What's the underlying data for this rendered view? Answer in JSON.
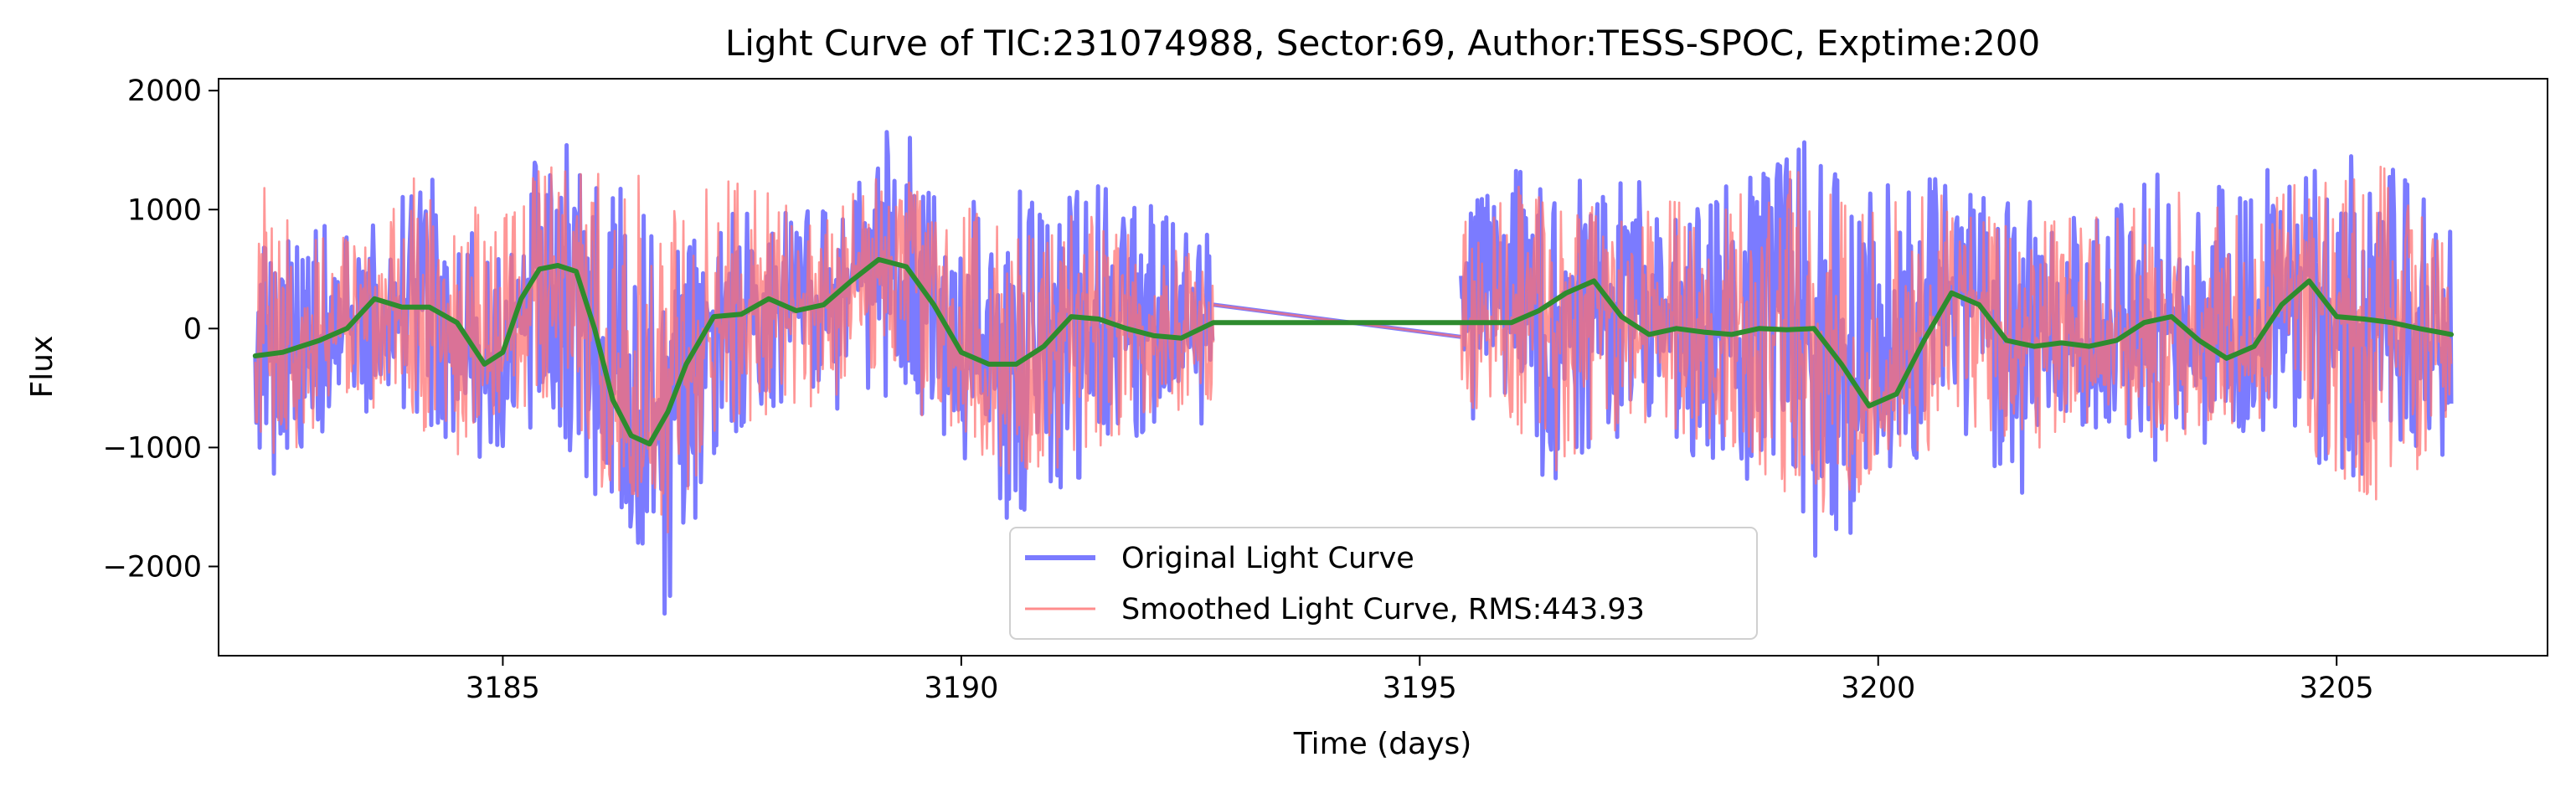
{
  "chart_data": {
    "type": "line",
    "title": "Light Curve of TIC:231074988, Sector:69, Author:TESS-SPOC, Exptime:200",
    "xlabel": "Time (days)",
    "ylabel": "Flux",
    "xlim": [
      3181.9,
      3207.3
    ],
    "ylim": [
      -2750,
      2100
    ],
    "xticks": [
      3185,
      3190,
      3195,
      3200,
      3205
    ],
    "yticks": [
      -2000,
      -1000,
      0,
      1000,
      2000
    ],
    "xtick_labels": [
      "3185",
      "3190",
      "3195",
      "3200",
      "3205"
    ],
    "ytick_labels": [
      "−2000",
      "−1000",
      "0",
      "1000",
      "2000"
    ],
    "grid": false,
    "legend_position": "bottom-center",
    "rms_text": "RMS:443.93",
    "segments": [
      [
        3182.3,
        3192.75
      ],
      [
        3195.45,
        3206.25
      ]
    ],
    "series": [
      {
        "name": "Original Light Curve",
        "color": "#7b7bff",
        "style": "noisy-line",
        "envelope": {
          "t": [
            3182.3,
            3183.0,
            3183.5,
            3184.0,
            3184.5,
            3185.0,
            3185.5,
            3186.0,
            3186.5,
            3186.8,
            3187.0,
            3187.5,
            3188.0,
            3188.5,
            3189.0,
            3189.3,
            3189.5,
            3190.0,
            3190.5,
            3191.0,
            3191.5,
            3192.0,
            3192.75,
            3195.45,
            3196.0,
            3196.5,
            3197.0,
            3197.5,
            3198.0,
            3198.5,
            3199.0,
            3199.5,
            3199.9,
            3200.5,
            3201.0,
            3201.5,
            3202.0,
            3202.5,
            3203.0,
            3203.5,
            3204.0,
            3204.5,
            3205.0,
            3205.5,
            3206.25
          ],
          "max": [
            700,
            1000,
            800,
            1400,
            1100,
            1200,
            1600,
            1500,
            1000,
            600,
            700,
            1000,
            1100,
            1000,
            1700,
            1850,
            1500,
            1100,
            1200,
            1100,
            1200,
            1100,
            900,
            1000,
            1400,
            1300,
            1300,
            1300,
            1100,
            1300,
            1750,
            1500,
            1300,
            1300,
            1200,
            1100,
            1050,
            1100,
            1400,
            1200,
            1300,
            1400,
            1400,
            1650,
            900
          ],
          "min": [
            -1400,
            -1000,
            -800,
            -900,
            -1300,
            -1000,
            -800,
            -1500,
            -2000,
            -2500,
            -1800,
            -900,
            -1000,
            -700,
            -650,
            -600,
            -800,
            -1200,
            -1600,
            -1400,
            -1200,
            -900,
            -800,
            -700,
            -1000,
            -1400,
            -1000,
            -900,
            -1100,
            -1200,
            -1700,
            -2100,
            -1500,
            -1200,
            -1000,
            -1500,
            -900,
            -900,
            -1200,
            -1000,
            -900,
            -1000,
            -1400,
            -1300,
            -1050
          ]
        }
      },
      {
        "name": "Smoothed Light Curve, RMS:443.93",
        "color": "#ff6f6f",
        "style": "noisy-line",
        "envelope": {
          "t": [
            3182.3,
            3183.0,
            3183.5,
            3184.0,
            3184.5,
            3185.0,
            3185.5,
            3186.0,
            3186.5,
            3186.8,
            3187.0,
            3187.5,
            3188.0,
            3188.5,
            3189.0,
            3189.3,
            3189.5,
            3190.0,
            3190.5,
            3191.0,
            3191.5,
            3192.0,
            3192.75,
            3195.45,
            3196.0,
            3196.5,
            3197.0,
            3197.5,
            3198.0,
            3198.5,
            3199.0,
            3199.5,
            3199.9,
            3200.5,
            3201.0,
            3201.5,
            3202.0,
            3202.5,
            3203.0,
            3203.5,
            3204.0,
            3204.5,
            3205.0,
            3205.5,
            3206.25
          ],
          "max": [
            1250,
            900,
            700,
            1300,
            1000,
            1100,
            1400,
            1300,
            1300,
            1100,
            1300,
            1400,
            1100,
            900,
            1300,
            1400,
            1200,
            1000,
            1100,
            1000,
            1000,
            900,
            800,
            900,
            1200,
            1150,
            1200,
            1200,
            1000,
            1200,
            1400,
            1300,
            1150,
            1150,
            1100,
            1000,
            950,
            1000,
            1200,
            1100,
            1150,
            1200,
            1300,
            1400,
            800
          ],
          "min": [
            -1200,
            -900,
            -700,
            -800,
            -1100,
            -900,
            -700,
            -1300,
            -1500,
            -1800,
            -1400,
            -800,
            -900,
            -600,
            -500,
            -500,
            -700,
            -1000,
            -1300,
            -1200,
            -1000,
            -800,
            -700,
            -600,
            -900,
            -1250,
            -900,
            -800,
            -1000,
            -1050,
            -1400,
            -1600,
            -1300,
            -1050,
            -900,
            -1300,
            -800,
            -800,
            -1050,
            -900,
            -800,
            -900,
            -1300,
            -1500,
            -950
          ]
        }
      },
      {
        "name": "",
        "color": "#2e8b2e",
        "style": "trend",
        "x": [
          3182.3,
          3182.6,
          3183.0,
          3183.3,
          3183.6,
          3183.9,
          3184.2,
          3184.5,
          3184.8,
          3185.0,
          3185.2,
          3185.4,
          3185.6,
          3185.8,
          3186.0,
          3186.2,
          3186.4,
          3186.6,
          3186.8,
          3187.0,
          3187.3,
          3187.6,
          3187.9,
          3188.2,
          3188.5,
          3188.8,
          3189.1,
          3189.4,
          3189.7,
          3190.0,
          3190.3,
          3190.6,
          3190.9,
          3191.2,
          3191.5,
          3191.8,
          3192.1,
          3192.4,
          3192.75,
          3195.45,
          3195.7,
          3196.0,
          3196.3,
          3196.6,
          3196.9,
          3197.2,
          3197.5,
          3197.8,
          3198.1,
          3198.4,
          3198.7,
          3199.0,
          3199.3,
          3199.6,
          3199.9,
          3200.2,
          3200.5,
          3200.8,
          3201.1,
          3201.4,
          3201.7,
          3202.0,
          3202.3,
          3202.6,
          3202.9,
          3203.2,
          3203.5,
          3203.8,
          3204.1,
          3204.4,
          3204.7,
          3205.0,
          3205.3,
          3205.6,
          3205.9,
          3206.25
        ],
        "y": [
          -230,
          -200,
          -100,
          0,
          250,
          180,
          180,
          50,
          -300,
          -200,
          250,
          500,
          530,
          480,
          0,
          -600,
          -900,
          -970,
          -700,
          -300,
          100,
          120,
          250,
          150,
          200,
          400,
          580,
          520,
          200,
          -200,
          -300,
          -300,
          -150,
          100,
          80,
          0,
          -60,
          -80,
          50,
          50,
          50,
          50,
          150,
          300,
          400,
          100,
          -50,
          0,
          -30,
          -50,
          0,
          -10,
          0,
          -300,
          -650,
          -550,
          -100,
          300,
          200,
          -100,
          -150,
          -120,
          -150,
          -100,
          50,
          100,
          -100,
          -250,
          -150,
          200,
          400,
          100,
          80,
          50,
          0,
          -50
        ]
      }
    ]
  }
}
